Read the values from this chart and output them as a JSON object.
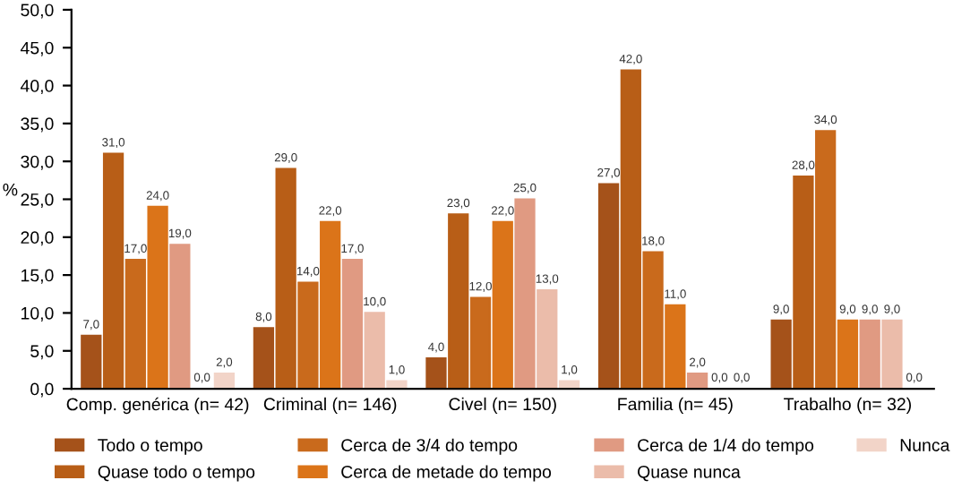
{
  "chart_data": {
    "type": "bar",
    "ylabel": "%",
    "categories": [
      "Comp. genérica (n= 42)",
      "Criminal (n= 146)",
      "Civel (n= 150)",
      "Familia (n= 45)",
      "Trabalho (n= 32)"
    ],
    "series": [
      {
        "name": "Todo o tempo",
        "color": "#a5521a",
        "values": [
          7,
          8,
          4,
          27,
          9
        ],
        "value_labels": [
          "7,0",
          "8,0",
          "4,0",
          "27,0",
          "9,0"
        ]
      },
      {
        "name": "Quase todo o tempo",
        "color": "#b85e17",
        "values": [
          31,
          29,
          23,
          42,
          28
        ],
        "value_labels": [
          "31,0",
          "29,0",
          "23,0",
          "42,0",
          "28,0"
        ]
      },
      {
        "name": "Cerca de 3/4 do tempo",
        "color": "#c96a1c",
        "values": [
          17,
          14,
          12,
          18,
          34
        ],
        "value_labels": [
          "17,0",
          "14,0",
          "12,0",
          "18,0",
          "34,0"
        ]
      },
      {
        "name": "Cerca de metade do tempo",
        "color": "#db7419",
        "values": [
          24,
          22,
          22,
          11,
          9
        ],
        "value_labels": [
          "24,0",
          "22,0",
          "22,0",
          "11,0",
          "9,0"
        ]
      },
      {
        "name": "Cerca de 1/4 do tempo",
        "color": "#e09a82",
        "values": [
          19,
          17,
          25,
          2,
          9
        ],
        "value_labels": [
          "19,0",
          "17,0",
          "25,0",
          "2,0",
          "9,0"
        ]
      },
      {
        "name": "Quase nunca",
        "color": "#ebbcaa",
        "values": [
          0,
          10,
          13,
          0,
          9
        ],
        "value_labels": [
          "0,0",
          "10,0",
          "13,0",
          "0,0",
          "9,0"
        ]
      },
      {
        "name": "Nunca",
        "color": "#f2d4c8",
        "values": [
          2,
          1,
          1,
          0,
          0
        ],
        "value_labels": [
          "2,0",
          "1,0",
          "1,0",
          "0,0",
          "0,0"
        ]
      }
    ],
    "ylim": [
      0,
      50
    ],
    "yticks": [
      {
        "value": 0,
        "label": "0,0"
      },
      {
        "value": 5,
        "label": "5,0"
      },
      {
        "value": 10,
        "label": "10,0"
      },
      {
        "value": 15,
        "label": "15,0"
      },
      {
        "value": 20,
        "label": "20,0"
      },
      {
        "value": 25,
        "label": "25,0"
      },
      {
        "value": 30,
        "label": "30,0"
      },
      {
        "value": 35,
        "label": "35,0"
      },
      {
        "value": 40,
        "label": "40,0"
      },
      {
        "value": 45,
        "label": "45,0"
      },
      {
        "value": 50,
        "label": "50,0"
      }
    ],
    "grid": false,
    "legend": "bottom"
  }
}
